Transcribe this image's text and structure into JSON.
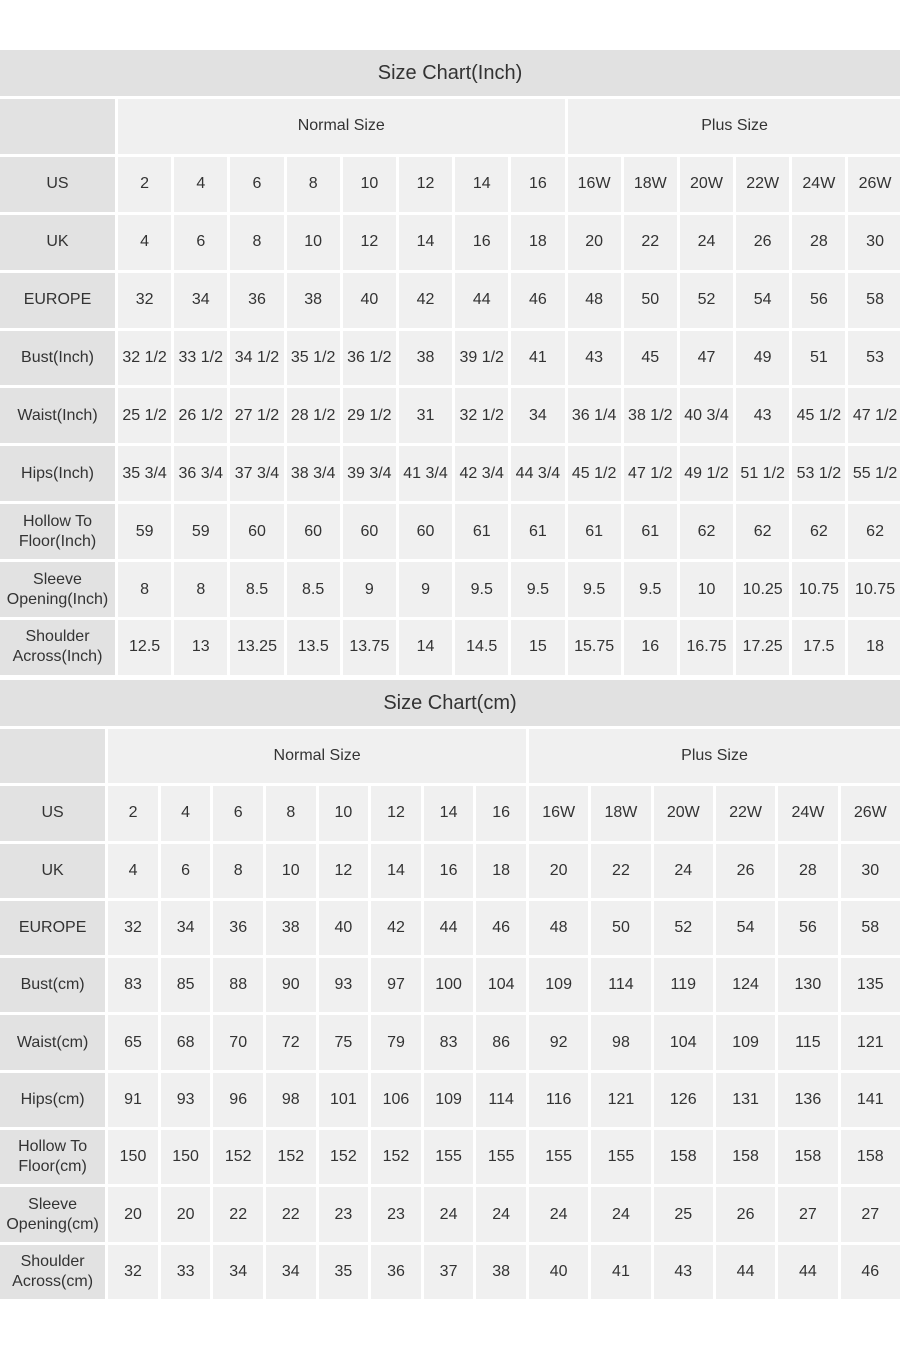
{
  "inch": {
    "title": "Size Chart(Inch)",
    "group_headers": [
      "Normal Size",
      "Plus Size"
    ],
    "rows": [
      {
        "label": "US",
        "values": [
          "2",
          "4",
          "6",
          "8",
          "10",
          "12",
          "14",
          "16",
          "16W",
          "18W",
          "20W",
          "22W",
          "24W",
          "26W"
        ]
      },
      {
        "label": "UK",
        "values": [
          "4",
          "6",
          "8",
          "10",
          "12",
          "14",
          "16",
          "18",
          "20",
          "22",
          "24",
          "26",
          "28",
          "30"
        ]
      },
      {
        "label": "EUROPE",
        "values": [
          "32",
          "34",
          "36",
          "38",
          "40",
          "42",
          "44",
          "46",
          "48",
          "50",
          "52",
          "54",
          "56",
          "58"
        ]
      },
      {
        "label": "Bust(Inch)",
        "values": [
          "32 1/2",
          "33 1/2",
          "34 1/2",
          "35 1/2",
          "36 1/2",
          "38",
          "39 1/2",
          "41",
          "43",
          "45",
          "47",
          "49",
          "51",
          "53"
        ]
      },
      {
        "label": "Waist(Inch)",
        "values": [
          "25 1/2",
          "26 1/2",
          "27 1/2",
          "28 1/2",
          "29 1/2",
          "31",
          "32 1/2",
          "34",
          "36 1/4",
          "38 1/2",
          "40 3/4",
          "43",
          "45 1/2",
          "47 1/2"
        ]
      },
      {
        "label": "Hips(Inch)",
        "values": [
          "35 3/4",
          "36 3/4",
          "37 3/4",
          "38 3/4",
          "39 3/4",
          "41 3/4",
          "42 3/4",
          "44 3/4",
          "45 1/2",
          "47 1/2",
          "49 1/2",
          "51 1/2",
          "53 1/2",
          "55 1/2"
        ]
      },
      {
        "label": "Hollow To Floor(Inch)",
        "values": [
          "59",
          "59",
          "60",
          "60",
          "60",
          "60",
          "61",
          "61",
          "61",
          "61",
          "62",
          "62",
          "62",
          "62"
        ]
      },
      {
        "label": "Sleeve Opening(Inch)",
        "values": [
          "8",
          "8",
          "8.5",
          "8.5",
          "9",
          "9",
          "9.5",
          "9.5",
          "9.5",
          "9.5",
          "10",
          "10.25",
          "10.75",
          "10.75"
        ]
      },
      {
        "label": "Shoulder Across(Inch)",
        "values": [
          "12.5",
          "13",
          "13.25",
          "13.5",
          "13.75",
          "14",
          "14.5",
          "15",
          "15.75",
          "16",
          "16.75",
          "17.25",
          "17.5",
          "18"
        ]
      }
    ]
  },
  "cm": {
    "title": "Size Chart(cm)",
    "group_headers": [
      "Normal Size",
      "Plus Size"
    ],
    "rows": [
      {
        "label": "US",
        "values": [
          "2",
          "4",
          "6",
          "8",
          "10",
          "12",
          "14",
          "16",
          "16W",
          "18W",
          "20W",
          "22W",
          "24W",
          "26W"
        ]
      },
      {
        "label": "UK",
        "values": [
          "4",
          "6",
          "8",
          "10",
          "12",
          "14",
          "16",
          "18",
          "20",
          "22",
          "24",
          "26",
          "28",
          "30"
        ]
      },
      {
        "label": "EUROPE",
        "values": [
          "32",
          "34",
          "36",
          "38",
          "40",
          "42",
          "44",
          "46",
          "48",
          "50",
          "52",
          "54",
          "56",
          "58"
        ]
      },
      {
        "label": "Bust(cm)",
        "values": [
          "83",
          "85",
          "88",
          "90",
          "93",
          "97",
          "100",
          "104",
          "109",
          "114",
          "119",
          "124",
          "130",
          "135"
        ]
      },
      {
        "label": "Waist(cm)",
        "values": [
          "65",
          "68",
          "70",
          "72",
          "75",
          "79",
          "83",
          "86",
          "92",
          "98",
          "104",
          "109",
          "115",
          "121"
        ]
      },
      {
        "label": "Hips(cm)",
        "values": [
          "91",
          "93",
          "96",
          "98",
          "101",
          "106",
          "109",
          "114",
          "116",
          "121",
          "126",
          "131",
          "136",
          "141"
        ]
      },
      {
        "label": "Hollow To Floor(cm)",
        "values": [
          "150",
          "150",
          "152",
          "152",
          "152",
          "152",
          "155",
          "155",
          "155",
          "155",
          "158",
          "158",
          "158",
          "158"
        ]
      },
      {
        "label": "Sleeve Opening(cm)",
        "values": [
          "20",
          "20",
          "22",
          "22",
          "23",
          "23",
          "24",
          "24",
          "24",
          "24",
          "25",
          "26",
          "27",
          "27"
        ]
      },
      {
        "label": "Shoulder Across(cm)",
        "values": [
          "32",
          "33",
          "34",
          "34",
          "35",
          "36",
          "37",
          "38",
          "40",
          "41",
          "43",
          "44",
          "44",
          "46"
        ]
      }
    ]
  }
}
